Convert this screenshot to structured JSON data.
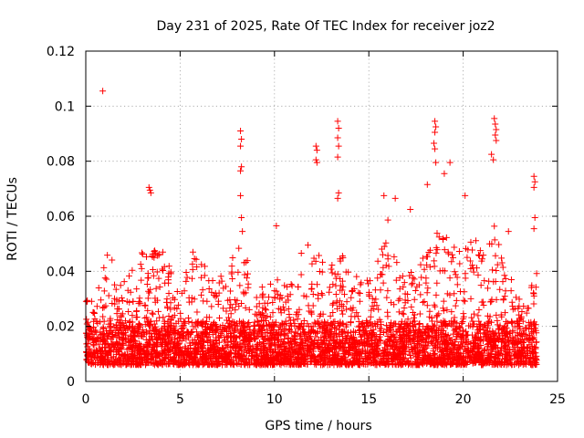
{
  "chart_data": {
    "type": "scatter",
    "title": "Day 231 of 2025, Rate Of TEC Index for receiver joz2",
    "xlabel": "GPS time / hours",
    "ylabel": "ROTI / TECUs",
    "xlim": [
      0,
      25
    ],
    "ylim": [
      0,
      0.12
    ],
    "xticks": [
      0,
      5,
      10,
      15,
      20,
      25
    ],
    "xtick_labels": [
      "0",
      "5",
      "10",
      "15",
      "20",
      "25"
    ],
    "yticks": [
      0,
      0.02,
      0.04,
      0.06,
      0.08,
      0.1,
      0.12
    ],
    "ytick_labels": [
      "0",
      "0.02",
      "0.04",
      "0.06",
      "0.08",
      "0.1",
      "0.12"
    ],
    "grid": true,
    "marker": "plus",
    "color": "#ff0000",
    "series": [
      {
        "name": "ROTI",
        "x_range": [
          0.0,
          23.9
        ],
        "points": [
          [
            0.9,
            0.1055
          ],
          [
            3.35,
            0.0705
          ],
          [
            3.4,
            0.0695
          ],
          [
            3.45,
            0.0685
          ],
          [
            8.2,
            0.091
          ],
          [
            8.25,
            0.088
          ],
          [
            8.2,
            0.0855
          ],
          [
            8.25,
            0.078
          ],
          [
            8.2,
            0.0765
          ],
          [
            8.2,
            0.0675
          ],
          [
            8.25,
            0.0595
          ],
          [
            8.3,
            0.0545
          ],
          [
            12.2,
            0.0855
          ],
          [
            12.25,
            0.084
          ],
          [
            12.2,
            0.0805
          ],
          [
            12.25,
            0.0795
          ],
          [
            13.35,
            0.0945
          ],
          [
            13.4,
            0.092
          ],
          [
            13.35,
            0.0885
          ],
          [
            13.4,
            0.0855
          ],
          [
            13.35,
            0.0815
          ],
          [
            13.4,
            0.0685
          ],
          [
            13.35,
            0.0665
          ],
          [
            18.5,
            0.0945
          ],
          [
            18.55,
            0.0925
          ],
          [
            18.5,
            0.0905
          ],
          [
            18.45,
            0.0865
          ],
          [
            18.5,
            0.0845
          ],
          [
            18.55,
            0.0795
          ],
          [
            19.3,
            0.0795
          ],
          [
            19.0,
            0.0755
          ],
          [
            18.1,
            0.0715
          ],
          [
            21.65,
            0.0955
          ],
          [
            21.7,
            0.0935
          ],
          [
            21.75,
            0.0915
          ],
          [
            21.7,
            0.0895
          ],
          [
            21.75,
            0.0875
          ],
          [
            21.5,
            0.0825
          ],
          [
            21.6,
            0.0805
          ],
          [
            23.75,
            0.0745
          ],
          [
            23.8,
            0.0725
          ],
          [
            23.75,
            0.0705
          ],
          [
            23.8,
            0.0595
          ],
          [
            23.75,
            0.0555
          ],
          [
            10.1,
            0.0565
          ],
          [
            15.8,
            0.0675
          ],
          [
            16.4,
            0.0665
          ],
          [
            17.2,
            0.0625
          ],
          [
            20.1,
            0.0675
          ],
          [
            22.4,
            0.0545
          ]
        ],
        "envelope": [
          [
            0.0,
            0.034
          ],
          [
            0.5,
            0.03
          ],
          [
            1.2,
            0.049
          ],
          [
            1.9,
            0.034
          ],
          [
            2.5,
            0.044
          ],
          [
            3.4,
            0.053
          ],
          [
            4.2,
            0.046
          ],
          [
            5.0,
            0.032
          ],
          [
            5.8,
            0.052
          ],
          [
            6.5,
            0.038
          ],
          [
            7.5,
            0.041
          ],
          [
            8.2,
            0.054
          ],
          [
            9.0,
            0.034
          ],
          [
            9.8,
            0.036
          ],
          [
            10.6,
            0.039
          ],
          [
            11.3,
            0.046
          ],
          [
            12.2,
            0.053
          ],
          [
            12.8,
            0.045
          ],
          [
            13.4,
            0.05
          ],
          [
            14.0,
            0.038
          ],
          [
            14.8,
            0.041
          ],
          [
            15.5,
            0.045
          ],
          [
            16.0,
            0.06
          ],
          [
            16.6,
            0.044
          ],
          [
            17.5,
            0.04
          ],
          [
            18.1,
            0.05
          ],
          [
            18.6,
            0.058
          ],
          [
            19.2,
            0.052
          ],
          [
            20.0,
            0.05
          ],
          [
            20.5,
            0.056
          ],
          [
            21.0,
            0.047
          ],
          [
            21.6,
            0.062
          ],
          [
            22.3,
            0.042
          ],
          [
            23.0,
            0.031
          ],
          [
            23.5,
            0.038
          ],
          [
            23.9,
            0.04
          ]
        ]
      }
    ]
  }
}
